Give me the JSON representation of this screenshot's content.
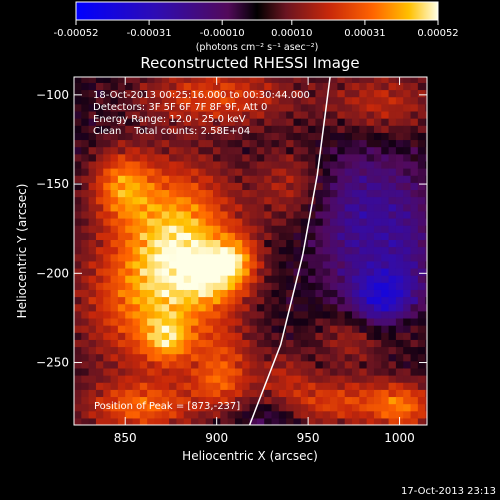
{
  "chart_data": {
    "type": "heatmap",
    "title": "Reconstructed RHESSI Image",
    "xlabel": "Heliocentric X (arcsec)",
    "ylabel": "Heliocentric Y (arcsec)",
    "xlim": [
      822,
      1015
    ],
    "ylim": [
      -285,
      -90
    ],
    "x_ticks": [
      850,
      900,
      950,
      1000
    ],
    "y_ticks": [
      -100,
      -150,
      -200,
      -250
    ],
    "colorbar": {
      "units": "(photons cm⁻² s⁻¹ asec⁻²)",
      "range": [
        -0.00052,
        0.00052
      ],
      "tick_labels": [
        "-0.00052",
        "-0.00031",
        "-0.00010",
        "0.00010",
        "0.00031",
        "0.00052"
      ],
      "tick_values": [
        -0.00052,
        -0.00031,
        -0.0001,
        0.0001,
        0.00031,
        0.00052
      ]
    },
    "info_lines": [
      "18-Oct-2013 00:25:16.000 to 00:30:44.000",
      "Detectors: 3F 5F 6F 7F 8F 9F, Att 0",
      "Energy Range: 12.0 - 25.0 keV",
      "Clean    Total counts: 2.58E+04"
    ],
    "peak_label": "Position of Peak = [873,-237]",
    "peak_position": [
      873,
      -237
    ],
    "limb_curve": [
      [
        918,
        -285
      ],
      [
        935,
        -240
      ],
      [
        947,
        -190
      ],
      [
        955,
        -145
      ],
      [
        962,
        -90
      ]
    ],
    "hot_regions": [
      {
        "x": 848,
        "y": -150,
        "sx": 12,
        "sy": 14,
        "amp": 0.0003
      },
      {
        "x": 880,
        "y": -175,
        "sx": 22,
        "sy": 28,
        "amp": 0.00035
      },
      {
        "x": 865,
        "y": -215,
        "sx": 28,
        "sy": 30,
        "amp": 0.00033
      },
      {
        "x": 873,
        "y": -237,
        "sx": 9,
        "sy": 9,
        "amp": 0.00022
      },
      {
        "x": 900,
        "y": -200,
        "sx": 12,
        "sy": 12,
        "amp": 0.00025
      },
      {
        "x": 912,
        "y": -192,
        "sx": 8,
        "sy": 10,
        "amp": 0.0002
      },
      {
        "x": 905,
        "y": -250,
        "sx": 12,
        "sy": 14,
        "amp": 0.00018
      },
      {
        "x": 900,
        "y": -262,
        "sx": 10,
        "sy": 8,
        "amp": 0.00012
      },
      {
        "x": 858,
        "y": -275,
        "sx": 22,
        "sy": 10,
        "amp": 0.00028
      },
      {
        "x": 900,
        "y": -100,
        "sx": 30,
        "sy": 12,
        "amp": 0.00025
      },
      {
        "x": 940,
        "y": -150,
        "sx": 14,
        "sy": 16,
        "amp": 0.00016
      },
      {
        "x": 990,
        "y": -105,
        "sx": 22,
        "sy": 14,
        "amp": 0.0002
      },
      {
        "x": 975,
        "y": -235,
        "sx": 14,
        "sy": 12,
        "amp": 0.00018
      },
      {
        "x": 1005,
        "y": -230,
        "sx": 10,
        "sy": 10,
        "amp": 0.00012
      },
      {
        "x": 965,
        "y": -272,
        "sx": 30,
        "sy": 10,
        "amp": 0.00025
      },
      {
        "x": 1002,
        "y": -275,
        "sx": 12,
        "sy": 10,
        "amp": 0.00024
      },
      {
        "x": 938,
        "y": -255,
        "sx": 10,
        "sy": 10,
        "amp": 0.00012
      }
    ],
    "cold_regions": [
      {
        "x": 980,
        "y": -170,
        "sx": 18,
        "sy": 30,
        "amp": -0.00022
      },
      {
        "x": 990,
        "y": -215,
        "sx": 12,
        "sy": 12,
        "amp": -0.00032
      },
      {
        "x": 930,
        "y": -280,
        "sx": 12,
        "sy": 8,
        "amp": -0.00014
      },
      {
        "x": 1005,
        "y": -190,
        "sx": 10,
        "sy": 30,
        "amp": -0.00012
      }
    ]
  },
  "footer_timestamp": "17-Oct-2013 23:13"
}
